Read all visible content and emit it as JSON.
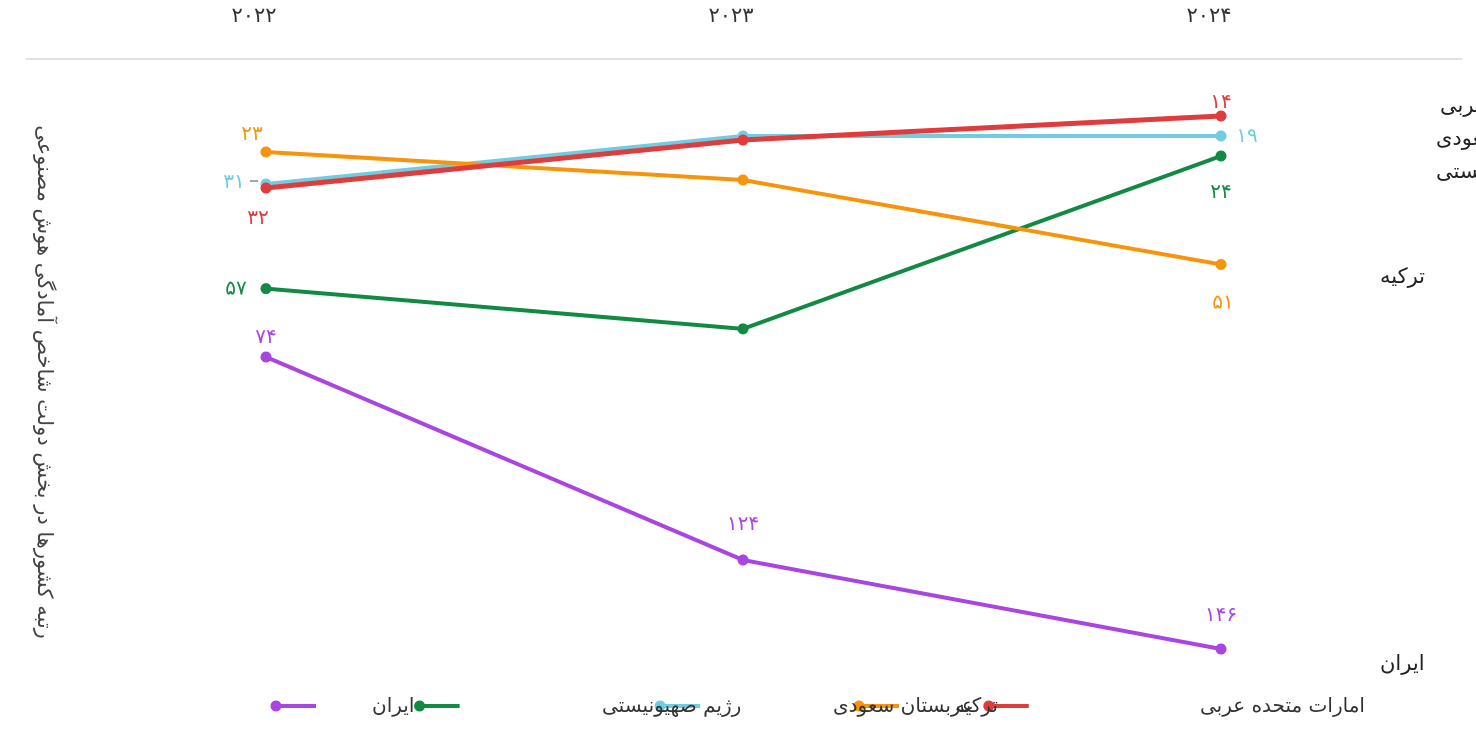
{
  "chart_data": {
    "type": "line",
    "title": "",
    "ylabel": "رتبه کشورها در بخش دولت شاخص آمادگی هوش مصنوعی",
    "y_reversed": true,
    "x": [
      "۲۰۲۲",
      "۲۰۲۳",
      "۲۰۲۴"
    ],
    "legend_position": "bottom",
    "series": [
      {
        "name": "ایران",
        "color": "#a945e0",
        "values": [
          74,
          124,
          146
        ],
        "labels": [
          "۷۴",
          "۱۲۴",
          "۱۴۶"
        ],
        "end_label": "ایران"
      },
      {
        "name": "رژیم صهیونیستی",
        "color": "#128a44",
        "values": [
          57,
          67,
          24
        ],
        "labels": [
          "۵۷",
          "",
          "۲۴"
        ],
        "end_label": "رژیم صهیونیستی"
      },
      {
        "name": "عربستان سعودی",
        "color": "#70cde0",
        "values": [
          31,
          19,
          19
        ],
        "labels": [
          "۳۱",
          "",
          "۱۹"
        ],
        "end_label": "عربستان سعودی"
      },
      {
        "name": "ترکیه",
        "color": "#f6940c",
        "values": [
          23,
          30,
          51
        ],
        "labels": [
          "۲۳",
          "",
          "۵۱"
        ],
        "end_label": "ترکیه"
      },
      {
        "name": "امارات متحده عربی",
        "color": "#e03b3d",
        "values": [
          32,
          20,
          14
        ],
        "labels": [
          "۳۲",
          "",
          "۱۴"
        ],
        "end_label": "امارات متحده عربی"
      }
    ]
  }
}
